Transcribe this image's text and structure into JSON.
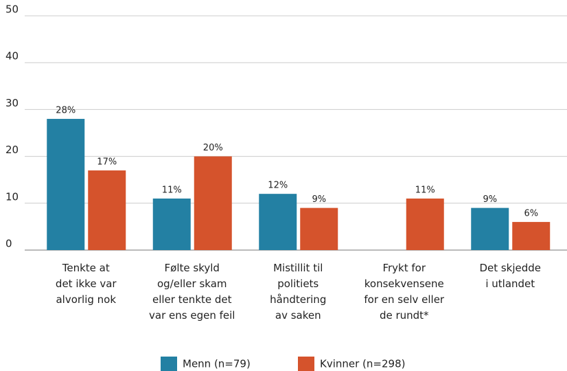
{
  "chart_data": {
    "type": "bar",
    "categories": [
      "Tenkte at\ndet ikke var\nalvorlig nok",
      "Følte skyld\nog/eller skam\neller tenkte det\nvar ens egen feil",
      "Mistillit til\npolitiets\nhåndtering\nav saken",
      "Frykt for\nkonsekvensene\nfor en selv eller\nde rundt*",
      "Det skjedde\ni utlandet"
    ],
    "series": [
      {
        "name": "Menn (n=79)",
        "color": "#2380a3",
        "values": [
          28,
          11,
          12,
          null,
          9
        ],
        "value_labels": [
          "28%",
          "11%",
          "12%",
          null,
          "9%"
        ]
      },
      {
        "name": "Kvinner (n=298)",
        "color": "#d5532c",
        "values": [
          17,
          20,
          9,
          11,
          6
        ],
        "value_labels": [
          "17%",
          "20%",
          "9%",
          "11%",
          "6%"
        ]
      }
    ],
    "ylim": [
      0,
      50
    ],
    "yticks": [
      0,
      10,
      20,
      30,
      40,
      50
    ],
    "grid": true
  }
}
